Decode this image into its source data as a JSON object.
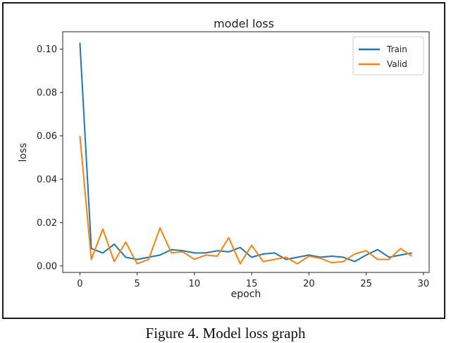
{
  "caption": "Figure 4. Model loss graph",
  "colors": {
    "train": "#1f77b4",
    "valid": "#ff7f0e"
  },
  "chart_data": {
    "type": "line",
    "title": "model loss",
    "xlabel": "epoch",
    "ylabel": "loss",
    "xlim": [
      -1.5,
      30.5
    ],
    "ylim": [
      -0.003,
      0.108
    ],
    "xticks": [
      0,
      5,
      10,
      15,
      20,
      25,
      30
    ],
    "xtick_labels": [
      "0",
      "5",
      "10",
      "15",
      "20",
      "25",
      "30"
    ],
    "yticks": [
      0.0,
      0.02,
      0.04,
      0.06,
      0.08,
      0.1
    ],
    "ytick_labels": [
      "0.00",
      "0.02",
      "0.04",
      "0.06",
      "0.08",
      "0.10"
    ],
    "legend_position": "top-right",
    "x": [
      0,
      1,
      2,
      3,
      4,
      5,
      6,
      7,
      8,
      9,
      10,
      11,
      12,
      13,
      14,
      15,
      16,
      17,
      18,
      19,
      20,
      21,
      22,
      23,
      24,
      25,
      26,
      27,
      28,
      29
    ],
    "series": [
      {
        "name": "Train",
        "color_key": "train",
        "values": [
          0.103,
          0.008,
          0.006,
          0.01,
          0.004,
          0.003,
          0.004,
          0.005,
          0.0075,
          0.007,
          0.006,
          0.006,
          0.007,
          0.0065,
          0.0085,
          0.004,
          0.0055,
          0.006,
          0.003,
          0.004,
          0.005,
          0.004,
          0.0045,
          0.004,
          0.002,
          0.005,
          0.0075,
          0.004,
          0.005,
          0.006
        ]
      },
      {
        "name": "Valid",
        "color_key": "valid",
        "values": [
          0.06,
          0.003,
          0.017,
          0.002,
          0.011,
          0.001,
          0.003,
          0.0175,
          0.006,
          0.0065,
          0.003,
          0.005,
          0.0045,
          0.013,
          0.001,
          0.0095,
          0.002,
          0.003,
          0.004,
          0.001,
          0.0045,
          0.0035,
          0.0015,
          0.002,
          0.0055,
          0.007,
          0.003,
          0.003,
          0.008,
          0.0045
        ]
      }
    ]
  }
}
